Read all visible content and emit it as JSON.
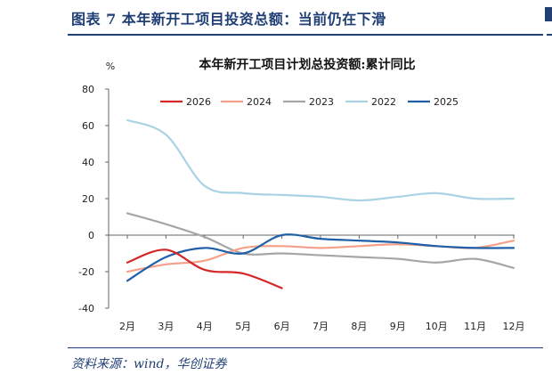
{
  "header": {
    "title": "图表 7  本年新开工项目投资总额：当前仍在下滑"
  },
  "footer": {
    "source": "资料来源：wind，华创证券"
  },
  "chart_data": {
    "type": "line",
    "title": "本年新开工项目计划总投资额:累计同比",
    "ylabel": "%",
    "xlabel": "",
    "categories": [
      "2月",
      "3月",
      "4月",
      "5月",
      "6月",
      "7月",
      "8月",
      "9月",
      "10月",
      "11月",
      "12月"
    ],
    "ylim": [
      -40,
      80
    ],
    "yticks": [
      -40,
      -20,
      0,
      20,
      40,
      60,
      80
    ],
    "grid": false,
    "legend_position": "top",
    "series": [
      {
        "name": "2026",
        "color": "#d62728",
        "values": [
          -15,
          -8,
          -19,
          -21,
          -29,
          null,
          null,
          null,
          null,
          null,
          null
        ]
      },
      {
        "name": "2024",
        "color": "#f4a08a",
        "values": [
          -20,
          -16,
          -14,
          -7,
          -6,
          -7,
          -6,
          -5,
          -6,
          -7,
          -3
        ]
      },
      {
        "name": "2023",
        "color": "#a6a6a6",
        "values": [
          12,
          6,
          -1,
          -10,
          -10,
          -11,
          -12,
          -13,
          -15,
          -13,
          -18
        ]
      },
      {
        "name": "2022",
        "color": "#a9d3e4",
        "values": [
          63,
          55,
          27,
          23,
          22,
          21,
          19,
          21,
          23,
          20,
          20
        ]
      },
      {
        "name": "2025",
        "color": "#1f5fa8",
        "values": [
          -25,
          -12,
          -7,
          -10,
          0,
          -2,
          -3,
          -4,
          -6,
          -7,
          -7
        ]
      }
    ]
  }
}
